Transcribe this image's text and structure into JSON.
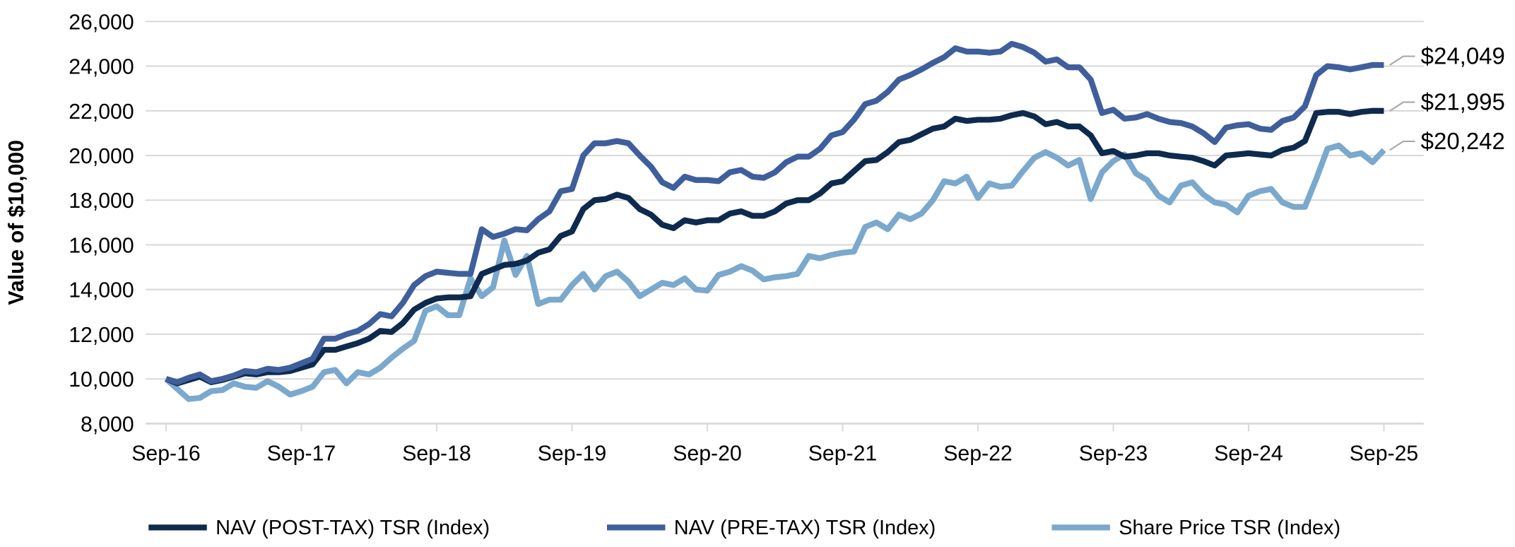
{
  "chart_data": {
    "type": "line",
    "title": "",
    "xlabel": "",
    "ylabel": "Value of $10,000",
    "ylim": [
      8000,
      26000
    ],
    "yticks": [
      "8,000",
      "10,000",
      "12,000",
      "14,000",
      "16,000",
      "18,000",
      "20,000",
      "22,000",
      "24,000",
      "26,000"
    ],
    "ytick_values": [
      8000,
      10000,
      12000,
      14000,
      16000,
      18000,
      20000,
      22000,
      24000,
      26000
    ],
    "xticks": [
      "Sep-16",
      "Sep-17",
      "Sep-18",
      "Sep-19",
      "Sep-20",
      "Sep-21",
      "Sep-22",
      "Sep-23",
      "Sep-24",
      "Sep-25"
    ],
    "grid": true,
    "legend_position": "bottom",
    "x": [
      "Sep-16",
      "Oct-16",
      "Nov-16",
      "Dec-16",
      "Jan-17",
      "Feb-17",
      "Mar-17",
      "Apr-17",
      "May-17",
      "Jun-17",
      "Jul-17",
      "Aug-17",
      "Sep-17",
      "Oct-17",
      "Nov-17",
      "Dec-17",
      "Jan-18",
      "Feb-18",
      "Mar-18",
      "Apr-18",
      "May-18",
      "Jun-18",
      "Jul-18",
      "Aug-18",
      "Sep-18",
      "Oct-18",
      "Nov-18",
      "Dec-18",
      "Jan-19",
      "Feb-19",
      "Mar-19",
      "Apr-19",
      "May-19",
      "Jun-19",
      "Jul-19",
      "Aug-19",
      "Sep-19",
      "Oct-19",
      "Nov-19",
      "Dec-19",
      "Jan-20",
      "Feb-20",
      "Mar-20",
      "Apr-20",
      "May-20",
      "Jun-20",
      "Jul-20",
      "Aug-20",
      "Sep-20",
      "Oct-20",
      "Nov-20",
      "Dec-20",
      "Jan-21",
      "Feb-21",
      "Mar-21",
      "Apr-21",
      "May-21",
      "Jun-21",
      "Jul-21",
      "Aug-21",
      "Sep-21",
      "Oct-21",
      "Nov-21",
      "Dec-21",
      "Jan-22",
      "Feb-22",
      "Mar-22",
      "Apr-22",
      "May-22",
      "Jun-22",
      "Jul-22",
      "Aug-22",
      "Sep-22",
      "Oct-22",
      "Nov-22",
      "Dec-22",
      "Jan-23",
      "Feb-23",
      "Mar-23",
      "Apr-23",
      "May-23",
      "Jun-23",
      "Jul-23",
      "Aug-23",
      "Sep-23",
      "Oct-23",
      "Nov-23",
      "Dec-23",
      "Jan-24",
      "Feb-24",
      "Mar-24",
      "Apr-24",
      "May-24",
      "Jun-24",
      "Jul-24",
      "Aug-24",
      "Sep-24",
      "Oct-24",
      "Nov-24",
      "Dec-24",
      "Jan-25",
      "Feb-25",
      "Mar-25",
      "Apr-25",
      "May-25",
      "Jun-25",
      "Jul-25",
      "Aug-25",
      "Sep-25"
    ],
    "series": [
      {
        "name": "NAV (POST-TAX) TSR (Index)",
        "color": "#0e2a4e",
        "end_label": "$21,995",
        "values": [
          10000,
          9800,
          9950,
          10100,
          9850,
          9950,
          10100,
          10250,
          10200,
          10300,
          10300,
          10350,
          10500,
          10650,
          11300,
          11300,
          11450,
          11600,
          11800,
          12150,
          12100,
          12500,
          13100,
          13400,
          13600,
          13650,
          13650,
          13700,
          14700,
          14900,
          15100,
          15150,
          15300,
          15650,
          15800,
          16400,
          16600,
          17600,
          18000,
          18050,
          18250,
          18100,
          17600,
          17350,
          16900,
          16750,
          17100,
          17000,
          17100,
          17100,
          17400,
          17500,
          17300,
          17300,
          17500,
          17850,
          18000,
          18000,
          18300,
          18750,
          18850,
          19300,
          19750,
          19800,
          20150,
          20600,
          20700,
          20950,
          21200,
          21300,
          21650,
          21550,
          21600,
          21600,
          21650,
          21800,
          21900,
          21750,
          21400,
          21500,
          21300,
          21300,
          20900,
          20100,
          20200,
          19950,
          20000,
          20100,
          20100,
          20000,
          19950,
          19900,
          19750,
          19550,
          20000,
          20050,
          20100,
          20050,
          20000,
          20250,
          20350,
          20650,
          21900,
          21950,
          21950,
          21850,
          21950,
          22000,
          21995
        ]
      },
      {
        "name": "NAV (PRE-TAX) TSR (Index)",
        "color": "#3f5f9c",
        "end_label": "$24,049",
        "values": [
          10000,
          9850,
          10050,
          10200,
          9900,
          10000,
          10150,
          10350,
          10300,
          10450,
          10400,
          10500,
          10700,
          10900,
          11800,
          11800,
          12000,
          12150,
          12450,
          12900,
          12800,
          13400,
          14200,
          14600,
          14800,
          14750,
          14700,
          14700,
          16700,
          16350,
          16500,
          16700,
          16650,
          17150,
          17500,
          18400,
          18500,
          20000,
          20550,
          20550,
          20650,
          20550,
          20000,
          19500,
          18800,
          18550,
          19050,
          18900,
          18900,
          18850,
          19250,
          19350,
          19050,
          19000,
          19250,
          19700,
          19950,
          19950,
          20300,
          20900,
          21050,
          21600,
          22300,
          22450,
          22850,
          23400,
          23600,
          23850,
          24150,
          24400,
          24800,
          24650,
          24650,
          24600,
          24650,
          25000,
          24850,
          24600,
          24200,
          24300,
          23950,
          23950,
          23400,
          21900,
          22050,
          21650,
          21700,
          21850,
          21650,
          21500,
          21450,
          21300,
          21000,
          20600,
          21250,
          21350,
          21400,
          21200,
          21150,
          21550,
          21700,
          22200,
          23600,
          24000,
          23950,
          23850,
          23950,
          24050,
          24049
        ]
      },
      {
        "name": "Share Price TSR (Index)",
        "color": "#7ba8cd",
        "end_label": "$20,242",
        "values": [
          10000,
          9550,
          9100,
          9150,
          9450,
          9500,
          9800,
          9650,
          9600,
          9900,
          9650,
          9300,
          9450,
          9650,
          10300,
          10400,
          9800,
          10300,
          10200,
          10500,
          10950,
          11350,
          11700,
          13050,
          13250,
          12850,
          12850,
          14500,
          13700,
          14100,
          16200,
          14650,
          15500,
          13350,
          13550,
          13550,
          14200,
          14700,
          14000,
          14600,
          14800,
          14350,
          13700,
          14000,
          14300,
          14200,
          14500,
          14000,
          13950,
          14650,
          14800,
          15050,
          14850,
          14450,
          14550,
          14600,
          14700,
          15500,
          15400,
          15550,
          15650,
          15700,
          16800,
          17000,
          16700,
          17350,
          17150,
          17400,
          18000,
          18850,
          18750,
          19050,
          18100,
          18750,
          18600,
          18650,
          19300,
          19900,
          20150,
          19900,
          19550,
          19800,
          18050,
          19250,
          19750,
          20050,
          19200,
          18900,
          18200,
          17900,
          18650,
          18800,
          18250,
          17900,
          17800,
          17450,
          18200,
          18400,
          18500,
          17900,
          17700,
          17700,
          18950,
          20300,
          20450,
          20000,
          20100,
          19700,
          20242
        ]
      }
    ],
    "gridline_color": "#d9d9d9"
  }
}
